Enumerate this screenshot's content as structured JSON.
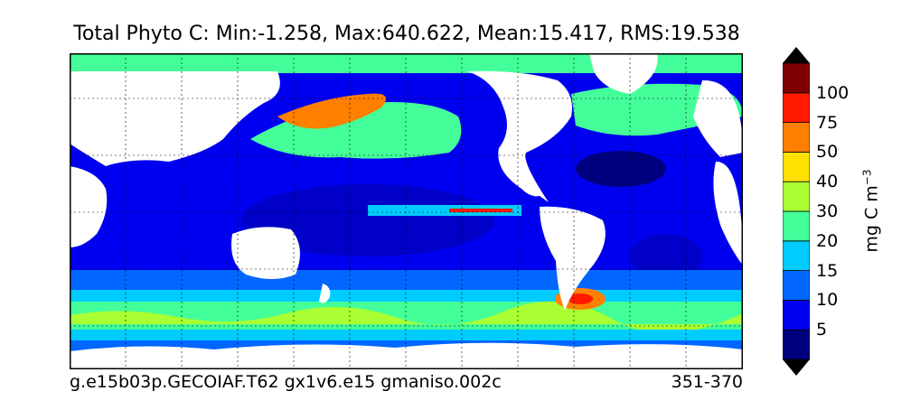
{
  "title": "Total Phyto C: Min:-1.258, Max:640.622, Mean:15.417, RMS:19.538",
  "footer": {
    "case": "g.e15b03p.GECOIAF.T62 gx1v6.e15 gmaniso.002c",
    "years": "351-370"
  },
  "colorbar": {
    "unit_base": "mg C m",
    "unit_exp": "−3",
    "levels": [
      "5",
      "10",
      "15",
      "20",
      "30",
      "40",
      "50",
      "75",
      "100"
    ],
    "colors": [
      "#00007f",
      "#0000f0",
      "#0066ff",
      "#00ccff",
      "#44ff99",
      "#aaff33",
      "#ffe000",
      "#ff7f00",
      "#ff1a00",
      "#7f0000"
    ]
  },
  "map": {
    "land_color": "#ffffff",
    "grid": "dashed"
  }
}
